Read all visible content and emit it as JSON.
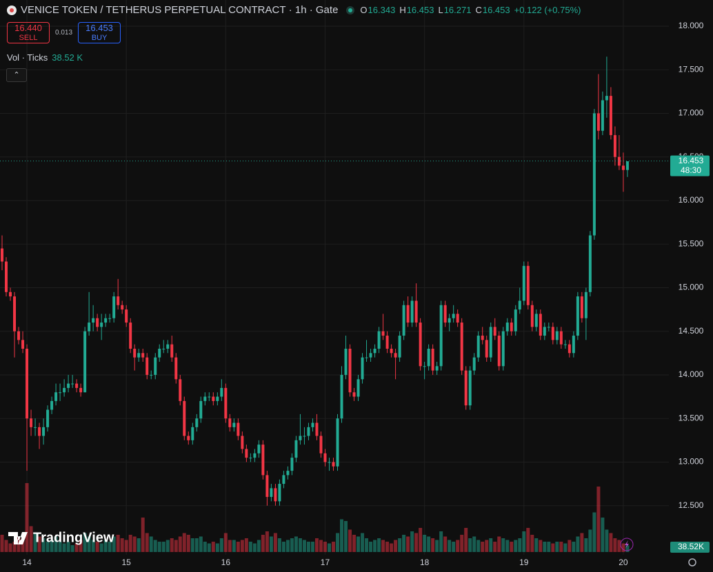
{
  "header": {
    "symbol": "VENICE TOKEN / TETHERUS PERPETUAL CONTRACT",
    "interval": "1h",
    "exchange": "Gate",
    "ohlc": [
      {
        "label": "O",
        "value": "16.343"
      },
      {
        "label": "H",
        "value": "16.453"
      },
      {
        "label": "L",
        "value": "16.271"
      },
      {
        "label": "C",
        "value": "16.453"
      }
    ],
    "change": "+0.122 (+0.75%)",
    "sell": {
      "price": "16.440",
      "label": "SELL"
    },
    "spread": "0.013",
    "buy": {
      "price": "16.453",
      "label": "BUY"
    },
    "volume_title": "Vol · Ticks",
    "volume_value": "38.52 K"
  },
  "chart_data": {
    "type": "candlestick",
    "ohlc": [
      [
        15.45,
        15.6,
        15.2,
        15.3
      ],
      [
        15.3,
        15.35,
        14.9,
        14.95
      ],
      [
        14.95,
        15.0,
        14.85,
        14.9
      ],
      [
        14.9,
        14.95,
        14.2,
        14.5
      ],
      [
        14.5,
        14.55,
        14.35,
        14.4
      ],
      [
        14.4,
        14.5,
        14.25,
        14.3
      ],
      [
        14.3,
        14.35,
        12.9,
        13.5
      ],
      [
        13.5,
        13.6,
        13.3,
        13.4
      ],
      [
        13.4,
        13.5,
        13.3,
        13.4
      ],
      [
        13.4,
        13.45,
        13.15,
        13.3
      ],
      [
        13.3,
        13.5,
        13.2,
        13.4
      ],
      [
        13.4,
        13.65,
        13.35,
        13.6
      ],
      [
        13.6,
        13.75,
        13.55,
        13.7
      ],
      [
        13.7,
        13.9,
        13.65,
        13.8
      ],
      [
        13.8,
        13.9,
        13.7,
        13.8
      ],
      [
        13.8,
        13.95,
        13.75,
        13.85
      ],
      [
        13.85,
        14.0,
        13.8,
        13.9
      ],
      [
        13.9,
        14.0,
        13.85,
        13.9
      ],
      [
        13.9,
        13.95,
        13.8,
        13.85
      ],
      [
        13.85,
        13.9,
        13.75,
        13.8
      ],
      [
        13.8,
        14.55,
        13.8,
        14.5
      ],
      [
        14.5,
        14.95,
        14.45,
        14.6
      ],
      [
        14.6,
        14.8,
        14.5,
        14.65
      ],
      [
        14.65,
        14.7,
        14.5,
        14.55
      ],
      [
        14.55,
        14.7,
        14.4,
        14.6
      ],
      [
        14.6,
        14.7,
        14.55,
        14.65
      ],
      [
        14.65,
        14.7,
        14.6,
        14.65
      ],
      [
        14.65,
        14.95,
        14.6,
        14.9
      ],
      [
        14.9,
        15.1,
        14.75,
        14.8
      ],
      [
        14.8,
        14.85,
        14.7,
        14.75
      ],
      [
        14.75,
        14.8,
        14.55,
        14.6
      ],
      [
        14.6,
        14.65,
        14.25,
        14.3
      ],
      [
        14.3,
        14.35,
        14.05,
        14.2
      ],
      [
        14.2,
        14.3,
        14.15,
        14.25
      ],
      [
        14.25,
        14.3,
        14.15,
        14.2
      ],
      [
        14.2,
        14.25,
        13.95,
        14.0
      ],
      [
        14.0,
        14.05,
        13.95,
        14.0
      ],
      [
        14.0,
        14.25,
        13.95,
        14.2
      ],
      [
        14.2,
        14.35,
        14.15,
        14.3
      ],
      [
        14.3,
        14.4,
        14.25,
        14.3
      ],
      [
        14.3,
        14.4,
        14.25,
        14.35
      ],
      [
        14.35,
        14.45,
        14.15,
        14.2
      ],
      [
        14.2,
        14.25,
        13.9,
        13.95
      ],
      [
        13.95,
        14.0,
        13.65,
        13.7
      ],
      [
        13.7,
        13.75,
        13.25,
        13.3
      ],
      [
        13.3,
        13.35,
        13.2,
        13.25
      ],
      [
        13.25,
        13.45,
        13.2,
        13.4
      ],
      [
        13.4,
        13.55,
        13.35,
        13.5
      ],
      [
        13.5,
        13.75,
        13.45,
        13.7
      ],
      [
        13.7,
        13.8,
        13.65,
        13.75
      ],
      [
        13.75,
        13.8,
        13.7,
        13.75
      ],
      [
        13.75,
        13.8,
        13.65,
        13.7
      ],
      [
        13.7,
        13.8,
        13.65,
        13.75
      ],
      [
        13.75,
        13.95,
        13.7,
        13.85
      ],
      [
        13.85,
        13.9,
        13.45,
        13.5
      ],
      [
        13.5,
        13.55,
        13.35,
        13.4
      ],
      [
        13.4,
        13.5,
        13.35,
        13.45
      ],
      [
        13.45,
        13.5,
        13.25,
        13.3
      ],
      [
        13.3,
        13.35,
        13.1,
        13.15
      ],
      [
        13.15,
        13.2,
        13.0,
        13.05
      ],
      [
        13.05,
        13.1,
        13.0,
        13.05
      ],
      [
        13.05,
        13.15,
        13.0,
        13.1
      ],
      [
        13.1,
        13.25,
        13.05,
        13.2
      ],
      [
        13.2,
        13.25,
        12.8,
        12.85
      ],
      [
        12.85,
        12.9,
        12.5,
        12.6
      ],
      [
        12.6,
        12.75,
        12.55,
        12.7
      ],
      [
        12.7,
        12.75,
        12.5,
        12.55
      ],
      [
        12.55,
        12.8,
        12.5,
        12.75
      ],
      [
        12.75,
        12.9,
        12.7,
        12.85
      ],
      [
        12.85,
        12.95,
        12.8,
        12.9
      ],
      [
        12.9,
        13.1,
        12.85,
        13.05
      ],
      [
        13.05,
        13.3,
        13.0,
        13.25
      ],
      [
        13.25,
        13.55,
        13.2,
        13.3
      ],
      [
        13.3,
        13.4,
        13.2,
        13.3
      ],
      [
        13.3,
        13.45,
        13.25,
        13.4
      ],
      [
        13.4,
        13.5,
        13.35,
        13.45
      ],
      [
        13.45,
        13.55,
        13.25,
        13.3
      ],
      [
        13.3,
        13.35,
        13.05,
        13.1
      ],
      [
        13.1,
        13.15,
        12.95,
        13.0
      ],
      [
        13.0,
        13.05,
        12.9,
        13.0
      ],
      [
        13.0,
        13.05,
        12.9,
        12.95
      ],
      [
        12.95,
        13.55,
        12.9,
        13.5
      ],
      [
        13.5,
        14.1,
        13.45,
        14.0
      ],
      [
        14.0,
        14.45,
        13.95,
        14.3
      ],
      [
        14.3,
        14.35,
        13.75,
        13.8
      ],
      [
        13.8,
        13.85,
        13.7,
        13.75
      ],
      [
        13.75,
        14.0,
        13.7,
        13.95
      ],
      [
        13.95,
        14.25,
        13.9,
        14.2
      ],
      [
        14.2,
        14.4,
        14.15,
        14.2
      ],
      [
        14.2,
        14.3,
        14.15,
        14.25
      ],
      [
        14.25,
        14.35,
        14.2,
        14.3
      ],
      [
        14.3,
        14.55,
        14.25,
        14.5
      ],
      [
        14.5,
        14.7,
        14.4,
        14.45
      ],
      [
        14.45,
        14.5,
        14.25,
        14.3
      ],
      [
        14.3,
        14.35,
        14.2,
        14.25
      ],
      [
        14.25,
        14.3,
        13.95,
        14.2
      ],
      [
        14.2,
        14.5,
        14.15,
        14.45
      ],
      [
        14.45,
        14.85,
        14.4,
        14.8
      ],
      [
        14.8,
        14.9,
        14.55,
        14.6
      ],
      [
        14.6,
        14.9,
        14.55,
        14.85
      ],
      [
        14.85,
        15.05,
        14.55,
        14.6
      ],
      [
        14.6,
        14.65,
        14.05,
        14.1
      ],
      [
        14.1,
        14.15,
        13.95,
        14.1
      ],
      [
        14.1,
        14.35,
        14.05,
        14.3
      ],
      [
        14.3,
        14.35,
        14.0,
        14.05
      ],
      [
        14.05,
        14.15,
        14.0,
        14.1
      ],
      [
        14.1,
        14.85,
        14.05,
        14.8
      ],
      [
        14.8,
        14.85,
        14.55,
        14.6
      ],
      [
        14.6,
        14.7,
        14.5,
        14.65
      ],
      [
        14.65,
        14.8,
        14.6,
        14.7
      ],
      [
        14.7,
        14.75,
        14.55,
        14.6
      ],
      [
        14.6,
        14.65,
        14.0,
        14.05
      ],
      [
        14.05,
        14.1,
        13.6,
        13.65
      ],
      [
        13.65,
        14.1,
        13.6,
        14.05
      ],
      [
        14.05,
        14.25,
        14.0,
        14.2
      ],
      [
        14.2,
        14.5,
        14.15,
        14.45
      ],
      [
        14.45,
        14.55,
        14.35,
        14.4
      ],
      [
        14.4,
        14.45,
        14.15,
        14.2
      ],
      [
        14.2,
        14.6,
        14.15,
        14.55
      ],
      [
        14.55,
        14.65,
        14.4,
        14.45
      ],
      [
        14.45,
        14.5,
        14.05,
        14.1
      ],
      [
        14.1,
        14.55,
        14.05,
        14.5
      ],
      [
        14.5,
        14.65,
        14.45,
        14.6
      ],
      [
        14.6,
        14.65,
        14.45,
        14.5
      ],
      [
        14.5,
        14.8,
        14.45,
        14.75
      ],
      [
        14.75,
        15.0,
        14.7,
        14.85
      ],
      [
        14.85,
        15.3,
        14.8,
        15.25
      ],
      [
        15.25,
        15.3,
        14.75,
        14.8
      ],
      [
        14.8,
        14.85,
        14.5,
        14.55
      ],
      [
        14.55,
        14.75,
        14.5,
        14.7
      ],
      [
        14.7,
        14.75,
        14.4,
        14.45
      ],
      [
        14.45,
        14.6,
        14.4,
        14.55
      ],
      [
        14.55,
        14.6,
        14.5,
        14.55
      ],
      [
        14.55,
        14.6,
        14.35,
        14.4
      ],
      [
        14.4,
        14.55,
        14.35,
        14.5
      ],
      [
        14.5,
        14.55,
        14.3,
        14.35
      ],
      [
        14.35,
        14.4,
        14.3,
        14.35
      ],
      [
        14.35,
        14.4,
        14.2,
        14.25
      ],
      [
        14.25,
        14.5,
        14.2,
        14.45
      ],
      [
        14.45,
        14.95,
        14.4,
        14.9
      ],
      [
        14.9,
        14.95,
        14.6,
        14.65
      ],
      [
        14.65,
        15.0,
        14.4,
        14.95
      ],
      [
        14.95,
        15.65,
        14.9,
        15.6
      ],
      [
        15.6,
        17.05,
        15.55,
        17.0
      ],
      [
        17.0,
        17.45,
        16.7,
        16.8
      ],
      [
        16.8,
        17.25,
        16.75,
        17.15
      ],
      [
        17.15,
        17.65,
        16.95,
        17.2
      ],
      [
        17.2,
        17.3,
        16.7,
        16.75
      ],
      [
        16.75,
        16.85,
        16.4,
        16.5
      ],
      [
        16.5,
        16.75,
        16.35,
        16.4
      ],
      [
        16.4,
        16.55,
        16.1,
        16.35
      ],
      [
        16.35,
        16.45,
        16.27,
        16.45
      ]
    ],
    "volume": [
      100,
      70,
      50,
      60,
      90,
      80,
      400,
      150,
      110,
      90,
      80,
      60,
      70,
      90,
      60,
      50,
      60,
      40,
      50,
      70,
      110,
      90,
      70,
      60,
      50,
      70,
      60,
      90,
      100,
      80,
      70,
      100,
      90,
      80,
      200,
      110,
      90,
      70,
      60,
      60,
      70,
      80,
      70,
      90,
      110,
      100,
      80,
      80,
      90,
      60,
      50,
      60,
      50,
      80,
      110,
      70,
      70,
      60,
      70,
      80,
      60,
      50,
      70,
      100,
      120,
      90,
      110,
      80,
      60,
      70,
      80,
      90,
      80,
      70,
      60,
      60,
      80,
      70,
      60,
      50,
      60,
      110,
      190,
      180,
      130,
      100,
      90,
      110,
      80,
      60,
      70,
      80,
      70,
      60,
      50,
      70,
      80,
      100,
      90,
      120,
      110,
      140,
      100,
      90,
      80,
      70,
      120,
      90,
      70,
      60,
      70,
      100,
      140,
      80,
      90,
      70,
      60,
      70,
      80,
      60,
      90,
      80,
      70,
      60,
      70,
      80,
      120,
      140,
      100,
      80,
      70,
      60,
      60,
      50,
      60,
      60,
      50,
      70,
      60,
      90,
      110,
      80,
      130,
      230,
      380,
      200,
      130,
      110,
      80,
      70,
      50,
      38.52
    ],
    "volume_ylim": [
      0,
      500
    ],
    "volume_last_label": "38.52K",
    "up_color": "#22ab94",
    "down_color": "#f23645",
    "xlim": [
      -0.5,
      161
    ],
    "xticks": [
      {
        "value": 6,
        "label": "14"
      },
      {
        "value": 30,
        "label": "15"
      },
      {
        "value": 54,
        "label": "16"
      },
      {
        "value": 78,
        "label": "17"
      },
      {
        "value": 102,
        "label": "18"
      },
      {
        "value": 126,
        "label": "19"
      },
      {
        "value": 150,
        "label": "20"
      }
    ],
    "ylim": [
      11.9,
      18.3
    ],
    "yticks": [
      {
        "value": 12.5,
        "label": "12.500"
      },
      {
        "value": 13,
        "label": "13.000"
      },
      {
        "value": 13.5,
        "label": "13.500"
      },
      {
        "value": 14,
        "label": "14.000"
      },
      {
        "value": 14.5,
        "label": "14.500"
      },
      {
        "value": 15,
        "label": "15.000"
      },
      {
        "value": 15.5,
        "label": "15.500"
      },
      {
        "value": 16,
        "label": "16.000"
      },
      {
        "value": 16.5,
        "label": "16.500"
      },
      {
        "value": 17,
        "label": "17.000"
      },
      {
        "value": 17.5,
        "label": "17.500"
      },
      {
        "value": 18,
        "label": "18.000"
      }
    ],
    "last_price": 16.453,
    "countdown": "48:30",
    "grid": true,
    "watermark": "TradingView"
  }
}
